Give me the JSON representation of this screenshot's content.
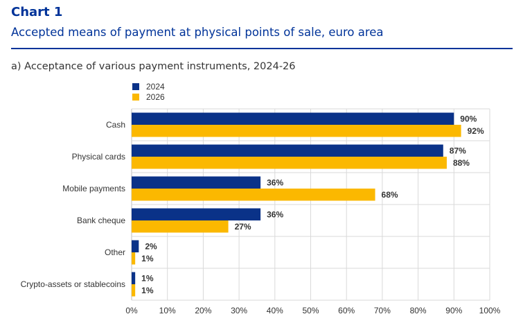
{
  "header": {
    "chart_number": "Chart 1",
    "title": "Accepted means of payment at physical points of sale, euro area",
    "panel_title": "a) Acceptance of various payment instruments, 2024-26"
  },
  "chart_data": {
    "type": "bar",
    "orientation": "horizontal",
    "categories": [
      "Cash",
      "Physical cards",
      "Mobile payments",
      "Bank cheque",
      "Other",
      "Crypto-assets or stablecoins"
    ],
    "series": [
      {
        "name": "2024",
        "color": "#0A3288",
        "values": [
          90,
          87,
          36,
          36,
          2,
          1
        ],
        "labels": [
          "90%",
          "87%",
          "36%",
          "36%",
          "2%",
          "1%"
        ]
      },
      {
        "name": "2026",
        "color": "#FBB800",
        "values": [
          92,
          88,
          68,
          27,
          1,
          1
        ],
        "labels": [
          "92%",
          "88%",
          "68%",
          "27%",
          "1%",
          "1%"
        ]
      }
    ],
    "xlim": [
      0,
      100
    ],
    "xticks": [
      "0%",
      "10%",
      "20%",
      "30%",
      "40%",
      "50%",
      "60%",
      "70%",
      "80%",
      "90%",
      "100%"
    ],
    "grid": true,
    "legend_position": "top-left"
  }
}
